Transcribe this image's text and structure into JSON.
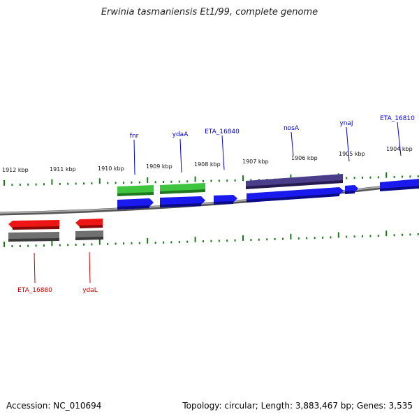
{
  "title": "Erwinia tasmaniensis Et1/99, complete genome",
  "footer": {
    "accession": "Accession: NC_010694",
    "summary": "Topology: circular; Length: 3,883,467 bp; Genes: 3,535"
  },
  "colors": {
    "forward_cds": "#1a1aee",
    "forward_gene_green": "#3ec43e",
    "forward_gene_purple": "#3d2f7a",
    "reverse_cds": "#ee1515",
    "reverse_gene_gray": "#666666",
    "backbone": "#888888",
    "ticks": "#1a7a1a",
    "forward_label": "#0000cc",
    "reverse_label": "#cc0000"
  },
  "ticks": [
    {
      "label": "1912 kbp"
    },
    {
      "label": "1911 kbp"
    },
    {
      "label": "1910 kbp"
    },
    {
      "label": "1909 kbp"
    },
    {
      "label": "1908 kbp"
    },
    {
      "label": "1907 kbp"
    },
    {
      "label": "1906 kbp"
    },
    {
      "label": "1905 kbp"
    },
    {
      "label": "1904 kbp"
    }
  ],
  "genes": {
    "forward": [
      "fnr",
      "ydaA",
      "ETA_16840",
      "nosA",
      "ynaJ",
      "ETA_16810"
    ],
    "reverse": [
      "ETA_16880",
      "ydaL"
    ]
  }
}
